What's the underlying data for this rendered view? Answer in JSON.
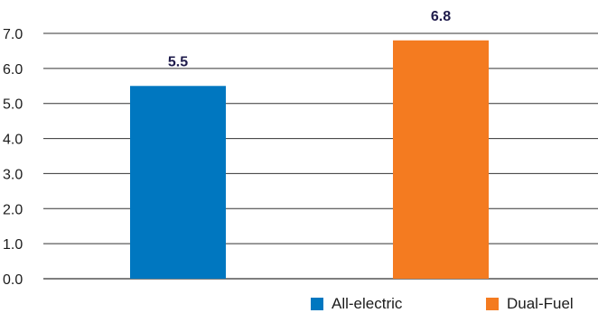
{
  "chart_data": {
    "type": "bar",
    "categories": [
      "All-electric",
      "Dual-Fuel"
    ],
    "values": [
      5.5,
      6.8
    ],
    "value_labels": [
      "5.5",
      "6.8"
    ],
    "colors": [
      "#0077c0",
      "#f47b20"
    ],
    "ylim": [
      0,
      7
    ],
    "yticks": [
      "0.0",
      "1.0",
      "2.0",
      "3.0",
      "4.0",
      "5.0",
      "6.0",
      "7.0"
    ],
    "grid": true,
    "legend_position": "bottom-right",
    "legend": [
      {
        "label": "All-electric",
        "color": "#0077c0"
      },
      {
        "label": "Dual-Fuel",
        "color": "#f47b20"
      }
    ]
  }
}
